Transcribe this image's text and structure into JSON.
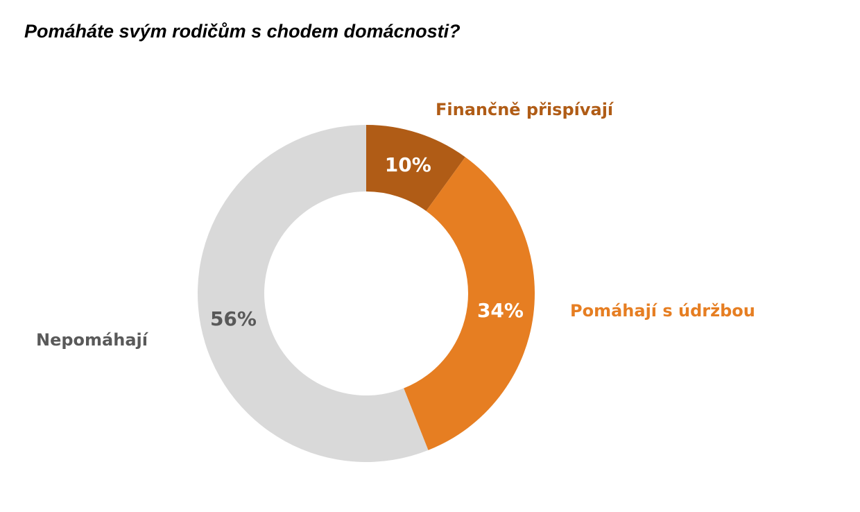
{
  "chart_data": {
    "type": "pie",
    "title": "Pomáháte svým rodičům s chodem domácnosti?",
    "subtype": "donut",
    "slices": [
      {
        "label": "Finančně přispívají",
        "value": 10,
        "value_label": "10%",
        "color": "#b05c16",
        "value_label_color": "#ffffff",
        "category_label_color": "#b05c16"
      },
      {
        "label": "Pomáhají s údržbou",
        "value": 34,
        "value_label": "34%",
        "color": "#e67e22",
        "value_label_color": "#ffffff",
        "category_label_color": "#e67e22"
      },
      {
        "label": "Nepomáhají",
        "value": 56,
        "value_label": "56%",
        "color": "#d9d9d9",
        "value_label_color": "#595959",
        "category_label_color": "#595959"
      }
    ],
    "start": "12 o'clock",
    "direction": "clockwise",
    "legend": "none"
  }
}
